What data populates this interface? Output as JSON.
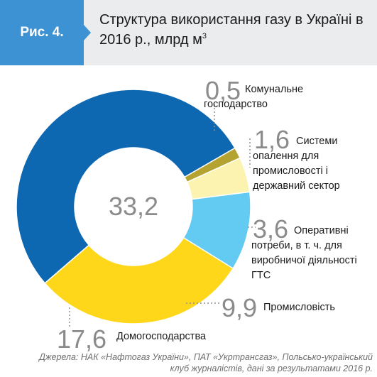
{
  "figure_label": "Рис. 4.",
  "title_main": "Структура використання газу в Україні в 2016 р., млрд м",
  "title_sup": "3",
  "source": "Джерела: НАК «Нафтогаз України», ПАТ «Укртрансгаз», Польсько-український клуб журналістів, дані за результатами 2016 р.",
  "chart_data": {
    "type": "pie",
    "variant": "donut",
    "title": "Структура використання газу в Україні в 2016 р., млрд м3",
    "total_label": "33,2",
    "start_angle_deg": 30,
    "direction": "counterclockwise",
    "slices": [
      {
        "name": "Домогосподарства",
        "value": 17.6,
        "value_label": "17,6",
        "color": "#0e67b1",
        "label_lines": [
          "Домогосподарства"
        ]
      },
      {
        "name": "Промисловість",
        "value": 9.9,
        "value_label": "9,9",
        "color": "#fed71a",
        "label_lines": [
          "Промисловість"
        ]
      },
      {
        "name": "Оперативні потреби, в т. ч. для виробничої діяльності ГТС",
        "value": 3.6,
        "value_label": "3,6",
        "color": "#63caf1",
        "label_lines": [
          "Оперативні",
          "потреби, в т. ч. для",
          "виробничої діяльності",
          "ГТС"
        ]
      },
      {
        "name": "Системи опалення для промисловості і державний сектор",
        "value": 1.6,
        "value_label": "1,6",
        "color": "#fdf3b0",
        "label_lines": [
          "Системи",
          "опалення для",
          "промисловості і",
          "державний сектор"
        ]
      },
      {
        "name": "Комунальне господарство",
        "value": 0.5,
        "value_label": "0,5",
        "color": "#b5a331",
        "label_lines": [
          "Комунальне",
          "господарство"
        ]
      }
    ]
  }
}
